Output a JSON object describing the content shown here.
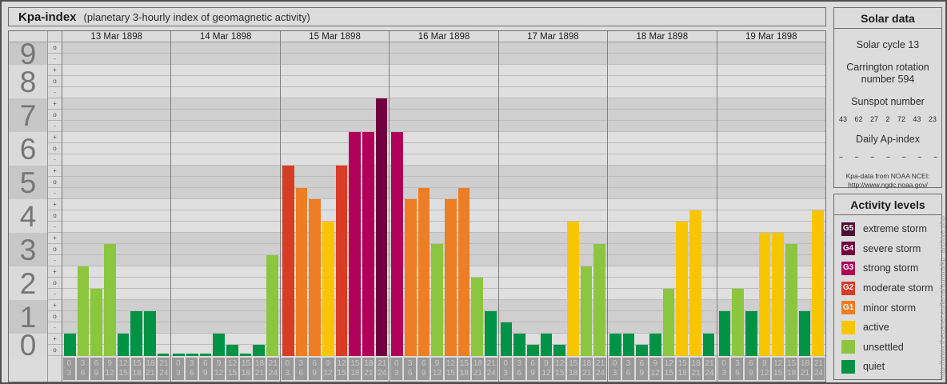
{
  "title_bar": {
    "title": "Kpa-index",
    "subtitle": "(planetary 3-hourly index of geomagnetic activity)"
  },
  "chart_data": {
    "type": "bar",
    "title": "Kpa-index (planetary 3-hourly index of geomagnetic activity)",
    "ylabel_ticks": [
      "9",
      "8",
      "7",
      "6",
      "5",
      "4",
      "3",
      "2",
      "1",
      "0"
    ],
    "kp_sublevel_symbols": [
      "o",
      "-",
      "+",
      "o",
      "-",
      "+",
      "o",
      "-",
      "+",
      "o",
      "-",
      "+",
      "o",
      "-",
      "+",
      "o",
      "-",
      "+",
      "o",
      "-",
      "+",
      "o",
      "-",
      "+",
      "o",
      "-",
      "+",
      "o"
    ],
    "time_slot_labels": [
      [
        "0",
        "3"
      ],
      [
        "3",
        "6"
      ],
      [
        "6",
        "9"
      ],
      [
        "9",
        "12"
      ],
      [
        "12",
        "15"
      ],
      [
        "15",
        "18"
      ],
      [
        "18",
        "21"
      ],
      [
        "21",
        "24"
      ]
    ],
    "ylim": [
      0,
      9.33
    ],
    "days": [
      {
        "date": "13 Mar 1898",
        "kp_labels": [
          "1-",
          "3-",
          "2o",
          "3+",
          "1-",
          "1+",
          "1+",
          "0o"
        ],
        "values": [
          0.67,
          2.67,
          2,
          3.33,
          0.67,
          1.33,
          1.33,
          0
        ]
      },
      {
        "date": "14 Mar 1898",
        "kp_labels": [
          "0o",
          "0o",
          "0o",
          "1-",
          "0+",
          "0o",
          "0+",
          "3o"
        ],
        "values": [
          0,
          0,
          0,
          0.67,
          0.33,
          0,
          0.33,
          3
        ]
      },
      {
        "date": "15 Mar 1898",
        "kp_labels": [
          "6-",
          "5o",
          "5-",
          "4o",
          "6-",
          "7-",
          "7-",
          "8-"
        ],
        "values": [
          5.67,
          5,
          4.67,
          4,
          5.67,
          6.67,
          6.67,
          7.67
        ]
      },
      {
        "date": "16 Mar 1898",
        "kp_labels": [
          "7-",
          "5-",
          "5o",
          "3+",
          "5-",
          "5o",
          "2+",
          "1+"
        ],
        "values": [
          6.67,
          4.67,
          5,
          3.33,
          4.67,
          5,
          2.33,
          1.33
        ]
      },
      {
        "date": "17 Mar 1898",
        "kp_labels": [
          "1o",
          "1-",
          "0+",
          "1-",
          "0+",
          "4o",
          "3-",
          "3+"
        ],
        "values": [
          1,
          0.67,
          0.33,
          0.67,
          0.33,
          4,
          2.67,
          3.33
        ]
      },
      {
        "date": "18 Mar 1898",
        "kp_labels": [
          "1-",
          "1-",
          "0+",
          "1-",
          "2o",
          "4o",
          "4+",
          "1-"
        ],
        "values": [
          0.67,
          0.67,
          0.33,
          0.67,
          2,
          4,
          4.33,
          0.67
        ]
      },
      {
        "date": "19 Mar 1898",
        "kp_labels": [
          "1+",
          "2o",
          "1+",
          "4-",
          "4-",
          "3+",
          "1+",
          "4+"
        ],
        "values": [
          1.33,
          2,
          1.33,
          3.67,
          3.67,
          3.33,
          1.33,
          4.33
        ]
      }
    ]
  },
  "colors": {
    "quiet": "#009245",
    "unsettled": "#8CC63F",
    "active": "#F7C600",
    "G1": "#EE7D23",
    "G2": "#DA3B26",
    "G3": "#B00058",
    "G4": "#700040",
    "G5": "#4D0E33"
  },
  "solar_panel": {
    "title": "Solar data",
    "solar_cycle": "Solar cycle 13",
    "carrington": "Carrington rotation number 594",
    "sunspot_title": "Sunspot number",
    "sunspot_values": [
      "43",
      "62",
      "27",
      "2",
      "72",
      "43",
      "23"
    ],
    "ap_title": "Daily Ap-index",
    "ap_values": [
      "--",
      "--",
      "--",
      "--",
      "--",
      "--",
      "--"
    ],
    "source_line1": "Kpa-data from NOAA NCEI:",
    "source_line2": "http://www.ngdc.noaa.gov/"
  },
  "activity_panel": {
    "title": "Activity levels",
    "items": [
      {
        "code": "G5",
        "label": "extreme storm",
        "color": "#4D0E33"
      },
      {
        "code": "G4",
        "label": "severe storm",
        "color": "#700040"
      },
      {
        "code": "G3",
        "label": "strong storm",
        "color": "#B00058"
      },
      {
        "code": "G2",
        "label": "moderate storm",
        "color": "#DA3B26"
      },
      {
        "code": "G1",
        "label": "minor storm",
        "color": "#EE7D23"
      },
      {
        "code": "",
        "label": "active",
        "color": "#F7C600"
      },
      {
        "code": "",
        "label": "unsettled",
        "color": "#8CC63F"
      },
      {
        "code": "",
        "label": "quiet",
        "color": "#009245"
      }
    ]
  },
  "watermark": "http://www.theusner.eu/terra/aurora/kp_archive.php"
}
